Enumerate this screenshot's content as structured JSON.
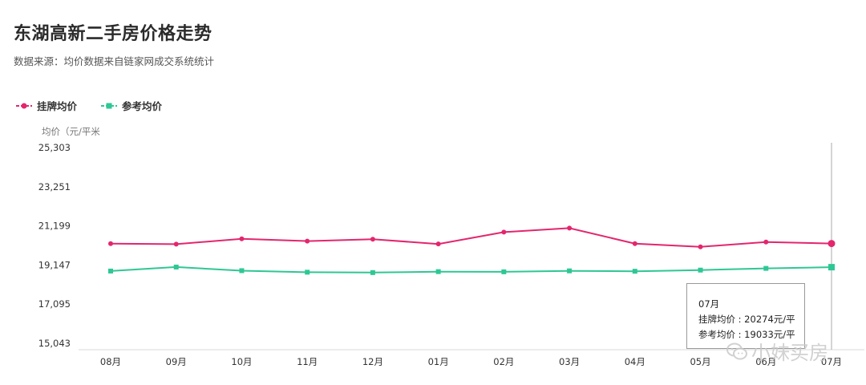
{
  "header": {
    "title": "东湖高新二手房价格走势",
    "subtitle": "数据来源：均价数据来自链家网成交系统统计"
  },
  "chart_data": {
    "type": "line",
    "ylabel": "均价（元/平米",
    "yticks": [
      "25,303",
      "23,251",
      "21,199",
      "19,147",
      "17,095",
      "15,043"
    ],
    "ylim": [
      15043,
      25303
    ],
    "categories": [
      "08月",
      "09月",
      "10月",
      "11月",
      "12月",
      "01月",
      "02月",
      "03月",
      "04月",
      "05月",
      "06月",
      "07月"
    ],
    "series": [
      {
        "name": "挂牌均价",
        "color": "#e3266e",
        "marker": "circle",
        "values": [
          20270,
          20240,
          20520,
          20400,
          20500,
          20250,
          20870,
          21080,
          20270,
          20100,
          20350,
          20274
        ]
      },
      {
        "name": "参考均价",
        "color": "#2ec795",
        "marker": "square",
        "values": [
          18830,
          19040,
          18850,
          18770,
          18750,
          18800,
          18790,
          18840,
          18820,
          18880,
          18970,
          19033
        ]
      }
    ],
    "grid": false,
    "legend": "top-left",
    "tooltip": {
      "month": "07月",
      "listing_line": "挂牌均价 : 20274元/平",
      "reference_line": "参考均价 : 19033元/平"
    }
  },
  "watermark": {
    "text": "小妹买房",
    "icon": "wechat-icon"
  }
}
